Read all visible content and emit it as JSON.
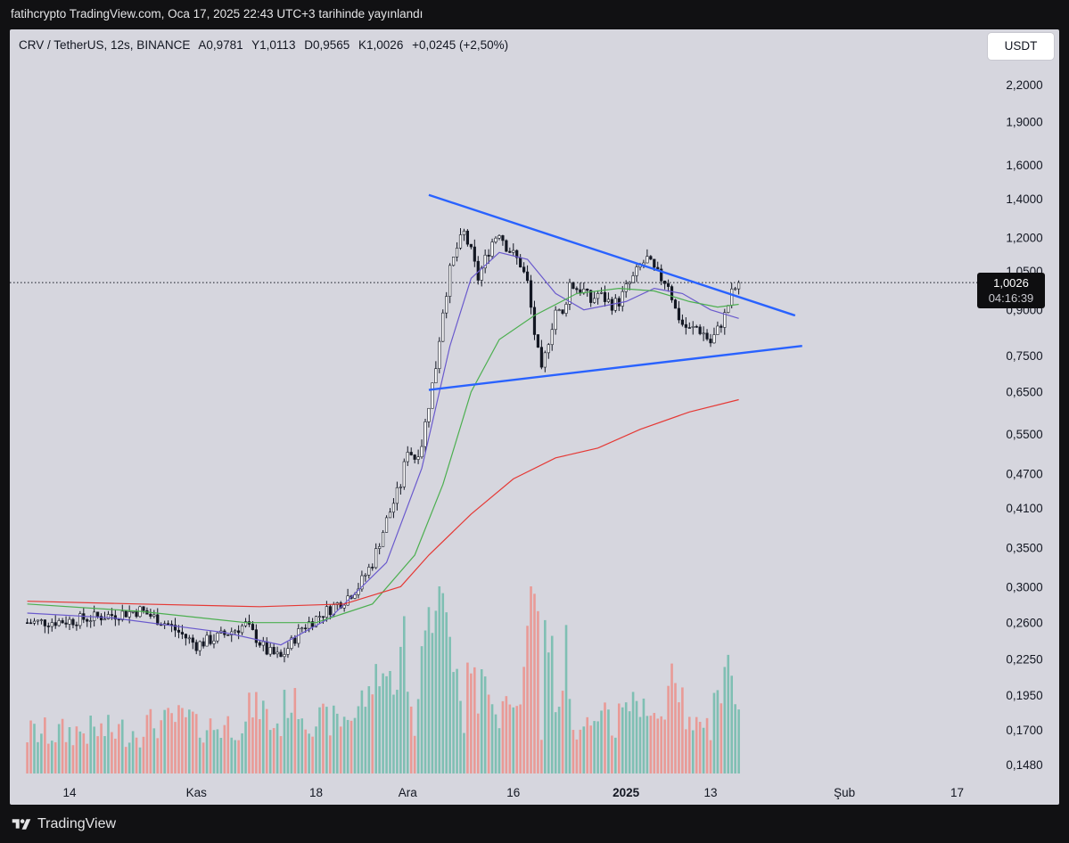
{
  "header": {
    "published": "fatihcrypto TradingView.com, Oca 17, 2025 22:43 UTC+3 tarihinde yayınlandı"
  },
  "legend": {
    "symbol": "CRV / TetherUS, 12s, BINANCE",
    "open": "A0,9781",
    "high": "Y1,0113",
    "low": "D0,9565",
    "close": "K1,0026",
    "change": "+0,0245 (+2,50%)"
  },
  "currency_button": "USDT",
  "price_badge": {
    "price": "1,0026",
    "countdown": "04:16:39"
  },
  "footer": {
    "brand": "TradingView"
  },
  "colors": {
    "background": "#d6d6de",
    "up": "#ffffff",
    "down": "#131722",
    "volume_up": "#7fbfb3",
    "volume_down": "#e99a96",
    "ma_fast": "#6a5acd",
    "ma_mid": "#4caf50",
    "ma_slow": "#e53935",
    "trendline": "#2962ff"
  },
  "chart_data": {
    "type": "candlestick",
    "symbol": "CRV/USDT",
    "interval": "12s",
    "exchange": "BINANCE",
    "scale": "log",
    "y_ticks": [
      "2,2000",
      "1,9000",
      "1,6000",
      "1,4000",
      "1,2000",
      "1,0500",
      "0,9000",
      "0,7500",
      "0,6500",
      "0,5500",
      "0,4700",
      "0,4100",
      "0,3500",
      "0,3000",
      "0,2600",
      "0,2250",
      "0,1950",
      "0,1700",
      "0,1480"
    ],
    "y_tick_values": [
      2.2,
      1.9,
      1.6,
      1.4,
      1.2,
      1.05,
      0.9,
      0.75,
      0.65,
      0.55,
      0.47,
      0.41,
      0.35,
      0.3,
      0.26,
      0.225,
      0.195,
      0.17,
      0.148
    ],
    "x_labels": [
      "14",
      "Kas",
      "18",
      "Ara",
      "16",
      "2025",
      "13",
      "Şub",
      "17"
    ],
    "x_label_bold": [
      false,
      false,
      false,
      false,
      false,
      true,
      false,
      false,
      false
    ],
    "x_label_dates": [
      "2024-10-14",
      "2024-11-01",
      "2024-11-18",
      "2024-12-01",
      "2024-12-16",
      "2025-01-01",
      "2025-01-13",
      "2025-02-01",
      "2025-02-17"
    ],
    "last_price": 1.0026,
    "ohlc_last": {
      "open": 0.9781,
      "high": 1.0113,
      "low": 0.9565,
      "close": 1.0026
    },
    "close_path": [
      [
        "2024-10-08",
        0.26
      ],
      [
        "2024-10-14",
        0.262
      ],
      [
        "2024-10-20",
        0.268
      ],
      [
        "2024-10-24",
        0.273
      ],
      [
        "2024-10-28",
        0.258
      ],
      [
        "2024-11-01",
        0.238
      ],
      [
        "2024-11-05",
        0.248
      ],
      [
        "2024-11-08",
        0.258
      ],
      [
        "2024-11-11",
        0.232
      ],
      [
        "2024-11-13",
        0.226
      ],
      [
        "2024-11-16",
        0.255
      ],
      [
        "2024-11-19",
        0.27
      ],
      [
        "2024-11-22",
        0.285
      ],
      [
        "2024-11-24",
        0.3
      ],
      [
        "2024-11-26",
        0.33
      ],
      [
        "2024-11-28",
        0.39
      ],
      [
        "2024-11-30",
        0.45
      ],
      [
        "2024-12-01",
        0.52
      ],
      [
        "2024-12-02",
        0.5
      ],
      [
        "2024-12-03",
        0.53
      ],
      [
        "2024-12-04",
        0.62
      ],
      [
        "2024-12-05",
        0.72
      ],
      [
        "2024-12-06",
        0.9
      ],
      [
        "2024-12-07",
        1.05
      ],
      [
        "2024-12-08",
        1.15
      ],
      [
        "2024-12-09",
        1.22
      ],
      [
        "2024-12-10",
        1.13
      ],
      [
        "2024-12-11",
        1.02
      ],
      [
        "2024-12-12",
        1.1
      ],
      [
        "2024-12-13",
        1.18
      ],
      [
        "2024-12-14",
        1.23
      ],
      [
        "2024-12-15",
        1.16
      ],
      [
        "2024-12-16",
        1.12
      ],
      [
        "2024-12-17",
        1.08
      ],
      [
        "2024-12-18",
        1.0
      ],
      [
        "2024-12-19",
        0.82
      ],
      [
        "2024-12-20",
        0.7
      ],
      [
        "2024-12-21",
        0.8
      ],
      [
        "2024-12-22",
        0.9
      ],
      [
        "2024-12-23",
        0.88
      ],
      [
        "2024-12-24",
        1.0
      ],
      [
        "2024-12-25",
        0.98
      ],
      [
        "2024-12-26",
        0.97
      ],
      [
        "2024-12-27",
        0.93
      ],
      [
        "2024-12-28",
        0.96
      ],
      [
        "2024-12-29",
        0.94
      ],
      [
        "2024-12-30",
        0.92
      ],
      [
        "2024-12-31",
        0.93
      ],
      [
        "2025-01-01",
        0.98
      ],
      [
        "2025-01-02",
        1.02
      ],
      [
        "2025-01-03",
        1.07
      ],
      [
        "2025-01-04",
        1.1
      ],
      [
        "2025-01-05",
        1.05
      ],
      [
        "2025-01-06",
        1.02
      ],
      [
        "2025-01-07",
        1.0
      ],
      [
        "2025-01-08",
        0.9
      ],
      [
        "2025-01-09",
        0.85
      ],
      [
        "2025-01-10",
        0.83
      ],
      [
        "2025-01-11",
        0.84
      ],
      [
        "2025-01-12",
        0.82
      ],
      [
        "2025-01-13",
        0.79
      ],
      [
        "2025-01-14",
        0.83
      ],
      [
        "2025-01-15",
        0.88
      ],
      [
        "2025-01-16",
        0.96
      ],
      [
        "2025-01-17",
        1.0026
      ]
    ],
    "moving_averages": [
      {
        "name": "ma_fast",
        "points": [
          [
            "2024-10-08",
            0.27
          ],
          [
            "2024-10-20",
            0.265
          ],
          [
            "2024-11-05",
            0.25
          ],
          [
            "2024-11-13",
            0.238
          ],
          [
            "2024-11-20",
            0.265
          ],
          [
            "2024-11-28",
            0.33
          ],
          [
            "2024-12-03",
            0.48
          ],
          [
            "2024-12-07",
            0.78
          ],
          [
            "2024-12-10",
            1.02
          ],
          [
            "2024-12-14",
            1.13
          ],
          [
            "2024-12-18",
            1.1
          ],
          [
            "2024-12-22",
            0.96
          ],
          [
            "2024-12-26",
            0.9
          ],
          [
            "2025-01-01",
            0.93
          ],
          [
            "2025-01-05",
            0.98
          ],
          [
            "2025-01-09",
            0.96
          ],
          [
            "2025-01-13",
            0.9
          ],
          [
            "2025-01-17",
            0.87
          ]
        ]
      },
      {
        "name": "ma_mid",
        "points": [
          [
            "2024-10-08",
            0.28
          ],
          [
            "2024-10-24",
            0.272
          ],
          [
            "2024-11-08",
            0.26
          ],
          [
            "2024-11-18",
            0.26
          ],
          [
            "2024-11-26",
            0.28
          ],
          [
            "2024-12-02",
            0.34
          ],
          [
            "2024-12-06",
            0.45
          ],
          [
            "2024-12-10",
            0.65
          ],
          [
            "2024-12-14",
            0.8
          ],
          [
            "2024-12-19",
            0.88
          ],
          [
            "2024-12-25",
            0.96
          ],
          [
            "2024-12-31",
            0.98
          ],
          [
            "2025-01-05",
            0.97
          ],
          [
            "2025-01-10",
            0.93
          ],
          [
            "2025-01-14",
            0.91
          ],
          [
            "2025-01-17",
            0.92
          ]
        ]
      },
      {
        "name": "ma_slow",
        "points": [
          [
            "2024-10-08",
            0.283
          ],
          [
            "2024-10-24",
            0.28
          ],
          [
            "2024-11-10",
            0.277
          ],
          [
            "2024-11-22",
            0.28
          ],
          [
            "2024-11-30",
            0.3
          ],
          [
            "2024-12-04",
            0.34
          ],
          [
            "2024-12-10",
            0.4
          ],
          [
            "2024-12-16",
            0.46
          ],
          [
            "2024-12-22",
            0.5
          ],
          [
            "2024-12-28",
            0.52
          ],
          [
            "2025-01-03",
            0.56
          ],
          [
            "2025-01-10",
            0.6
          ],
          [
            "2025-01-17",
            0.63
          ]
        ]
      }
    ],
    "trendlines": [
      {
        "name": "descending-resistance",
        "points": [
          [
            "2024-12-04",
            1.42
          ],
          [
            "2025-01-25",
            0.88
          ]
        ]
      },
      {
        "name": "ascending-support",
        "points": [
          [
            "2024-12-04",
            0.655
          ],
          [
            "2025-01-26",
            0.78
          ]
        ]
      }
    ],
    "volume": {
      "unit": "relative",
      "max_visible": 1.0
    },
    "grid": false,
    "legend_position": "top-left"
  }
}
